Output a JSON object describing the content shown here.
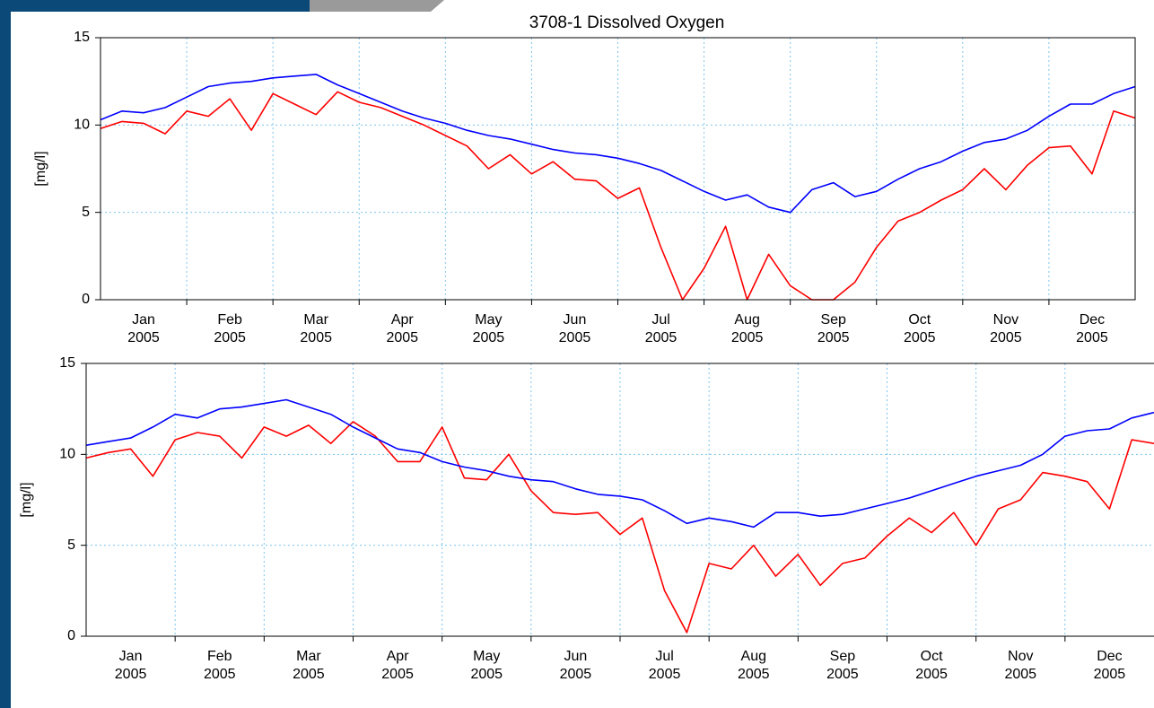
{
  "chart_data": [
    {
      "type": "line",
      "title": "3708-1 Dissolved Oxygen",
      "ylabel": "[mg/l]",
      "x": [
        0,
        0.25,
        0.5,
        0.75,
        1,
        1.25,
        1.5,
        1.75,
        2,
        2.25,
        2.5,
        2.75,
        3,
        3.25,
        3.5,
        3.75,
        4,
        4.25,
        4.5,
        4.75,
        5,
        5.25,
        5.5,
        5.75,
        6,
        6.25,
        6.5,
        6.75,
        7,
        7.25,
        7.5,
        7.75,
        8,
        8.25,
        8.5,
        8.75,
        9,
        9.25,
        9.5,
        9.75,
        10,
        10.25,
        10.5,
        10.75,
        11,
        11.25,
        11.5,
        11.75,
        12
      ],
      "xlim": [
        0,
        12
      ],
      "xgrid": [
        1,
        2,
        3,
        4,
        5,
        6,
        7,
        8,
        9,
        10,
        11
      ],
      "xticks": [
        {
          "value": 0.5,
          "label": "Jan"
        },
        {
          "value": 1.5,
          "label": "Feb"
        },
        {
          "value": 2.5,
          "label": "Mar"
        },
        {
          "value": 3.5,
          "label": "Apr"
        },
        {
          "value": 4.5,
          "label": "May"
        },
        {
          "value": 5.5,
          "label": "Jun"
        },
        {
          "value": 6.5,
          "label": "Jul"
        },
        {
          "value": 7.5,
          "label": "Aug"
        },
        {
          "value": 8.5,
          "label": "Sep"
        },
        {
          "value": 9.5,
          "label": "Oct"
        },
        {
          "value": 10.5,
          "label": "Nov"
        },
        {
          "value": 11.5,
          "label": "Dec"
        }
      ],
      "xtick_sublabels": [
        "2005",
        "2005",
        "2005",
        "2005",
        "2005",
        "2005",
        "2005",
        "2005",
        "2005",
        "2005",
        "2005",
        "2005"
      ],
      "ylim": [
        0,
        15
      ],
      "yticks": [
        0,
        5,
        10,
        15
      ],
      "grid": true,
      "series": [
        {
          "color": "#ff0000",
          "values": [
            9.8,
            10.2,
            10.1,
            9.5,
            10.8,
            10.5,
            11.5,
            9.7,
            11.8,
            11.2,
            10.6,
            11.9,
            11.3,
            11.0,
            10.5,
            10.0,
            9.4,
            8.8,
            7.5,
            8.3,
            7.2,
            7.9,
            6.9,
            6.8,
            5.8,
            6.4,
            3.0,
            0,
            1.8,
            4.2,
            0,
            2.6,
            0.8,
            0,
            0,
            1.0,
            3.0,
            4.5,
            5.0,
            5.7,
            6.3,
            7.5,
            6.3,
            7.7,
            8.7,
            8.8,
            7.2,
            10.8,
            10.4
          ]
        },
        {
          "color": "#0000ff",
          "values": [
            10.3,
            10.8,
            10.7,
            11.0,
            11.6,
            12.2,
            12.4,
            12.5,
            12.7,
            12.8,
            12.9,
            12.3,
            11.8,
            11.3,
            10.8,
            10.4,
            10.1,
            9.7,
            9.4,
            9.2,
            8.9,
            8.6,
            8.4,
            8.3,
            8.1,
            7.8,
            7.4,
            6.8,
            6.2,
            5.7,
            6.0,
            5.3,
            5.0,
            6.3,
            6.7,
            5.9,
            6.2,
            6.9,
            7.5,
            7.9,
            8.5,
            9.0,
            9.2,
            9.7,
            10.5,
            11.2,
            11.2,
            11.8,
            12.2
          ]
        }
      ]
    },
    {
      "type": "line",
      "ylabel": "[mg/l]",
      "x": [
        0,
        0.25,
        0.5,
        0.75,
        1,
        1.25,
        1.5,
        1.75,
        2,
        2.25,
        2.5,
        2.75,
        3,
        3.25,
        3.5,
        3.75,
        4,
        4.25,
        4.5,
        4.75,
        5,
        5.25,
        5.5,
        5.75,
        6,
        6.25,
        6.5,
        6.75,
        7,
        7.25,
        7.5,
        7.75,
        8,
        8.25,
        8.5,
        8.75,
        9,
        9.25,
        9.5,
        9.75,
        10,
        10.25,
        10.5,
        10.75,
        11,
        11.25,
        11.5,
        11.75,
        12
      ],
      "xlim": [
        0,
        12
      ],
      "xgrid": [
        1,
        2,
        3,
        4,
        5,
        6,
        7,
        8,
        9,
        10,
        11
      ],
      "xticks": [
        {
          "value": 0.5,
          "label": "Jan"
        },
        {
          "value": 1.5,
          "label": "Feb"
        },
        {
          "value": 2.5,
          "label": "Mar"
        },
        {
          "value": 3.5,
          "label": "Apr"
        },
        {
          "value": 4.5,
          "label": "May"
        },
        {
          "value": 5.5,
          "label": "Jun"
        },
        {
          "value": 6.5,
          "label": "Jul"
        },
        {
          "value": 7.5,
          "label": "Aug"
        },
        {
          "value": 8.5,
          "label": "Sep"
        },
        {
          "value": 9.5,
          "label": "Oct"
        },
        {
          "value": 10.5,
          "label": "Nov"
        },
        {
          "value": 11.5,
          "label": "Dec"
        }
      ],
      "xtick_sublabels": [
        "2005",
        "2005",
        "2005",
        "2005",
        "2005",
        "2005",
        "2005",
        "2005",
        "2005",
        "2005",
        "2005",
        "2005"
      ],
      "ylim": [
        0,
        15
      ],
      "yticks": [
        0,
        5,
        10,
        15
      ],
      "grid": true,
      "series": [
        {
          "color": "#ff0000",
          "values": [
            9.8,
            10.1,
            10.3,
            8.8,
            10.8,
            11.2,
            11.0,
            9.8,
            11.5,
            11.0,
            11.6,
            10.6,
            11.8,
            11.0,
            9.6,
            9.6,
            11.5,
            8.7,
            8.6,
            10.0,
            8.0,
            6.8,
            6.7,
            6.8,
            5.6,
            6.5,
            2.5,
            0.2,
            4.0,
            3.7,
            5.0,
            3.3,
            4.5,
            2.8,
            4.0,
            4.3,
            5.5,
            6.5,
            5.7,
            6.8,
            5.0,
            7.0,
            7.5,
            9.0,
            8.8,
            8.5,
            7.0,
            10.8,
            10.6
          ]
        },
        {
          "color": "#0000ff",
          "values": [
            10.5,
            10.7,
            10.9,
            11.5,
            12.2,
            12.0,
            12.5,
            12.6,
            12.8,
            13.0,
            12.6,
            12.2,
            11.5,
            10.9,
            10.3,
            10.1,
            9.6,
            9.3,
            9.1,
            8.8,
            8.6,
            8.5,
            8.1,
            7.8,
            7.7,
            7.5,
            6.9,
            6.2,
            6.5,
            6.3,
            6.0,
            6.8,
            6.8,
            6.6,
            6.7,
            7.0,
            7.3,
            7.6,
            8.0,
            8.4,
            8.8,
            9.1,
            9.4,
            10.0,
            11.0,
            11.3,
            11.4,
            12.0,
            12.3
          ]
        }
      ]
    }
  ]
}
